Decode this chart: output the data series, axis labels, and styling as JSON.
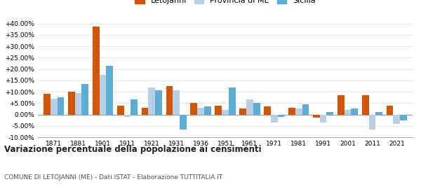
{
  "years": [
    1871,
    1881,
    1901,
    1911,
    1921,
    1931,
    1936,
    1951,
    1961,
    1971,
    1981,
    1991,
    2001,
    2011,
    2021
  ],
  "letojanni": [
    9.0,
    10.0,
    38.5,
    4.0,
    3.0,
    12.5,
    5.0,
    4.0,
    2.5,
    3.5,
    3.0,
    -1.5,
    8.5,
    8.5,
    4.0
  ],
  "provincia_me": [
    7.0,
    9.5,
    17.5,
    -1.0,
    12.0,
    10.5,
    3.0,
    2.0,
    6.5,
    -3.5,
    2.5,
    -3.5,
    2.0,
    -6.5,
    -4.0
  ],
  "sicilia": [
    7.5,
    13.5,
    21.5,
    6.5,
    10.5,
    -6.5,
    3.5,
    12.0,
    5.0,
    -1.0,
    4.5,
    1.0,
    2.5,
    1.0,
    -2.5
  ],
  "color_letojanni": "#d45500",
  "color_provincia": "#b8cfe8",
  "color_sicilia": "#5badd6",
  "title": "Variazione percentuale della popolazione ai censimenti",
  "subtitle": "COMUNE DI LETOJANNI (ME) - Dati ISTAT - Elaborazione TUTTITALIA.IT",
  "ylim": [
    -10,
    40
  ],
  "yticks": [
    -10,
    -5,
    0,
    5,
    10,
    15,
    20,
    25,
    30,
    35,
    40
  ],
  "legend_labels": [
    "Letojanni",
    "Provincia di ME",
    "Sicilia"
  ],
  "bar_width": 0.28
}
